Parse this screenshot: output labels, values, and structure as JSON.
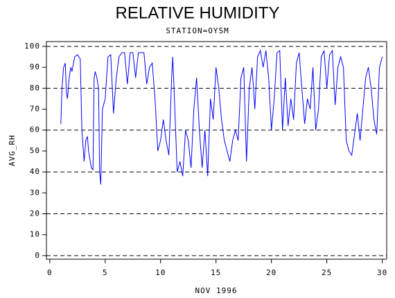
{
  "chart_data": {
    "type": "line",
    "title": "RELATIVE HUMIDITY",
    "subtitle": "STATION=OYSM",
    "x_label": "NOV 1996",
    "y_label": "AVG_RH",
    "color": "#0000ff",
    "grid": true,
    "xlim": [
      -0.3,
      30.4
    ],
    "ylim": [
      -1.7,
      102.3
    ],
    "xticks": [
      0,
      5,
      10,
      15,
      20,
      25,
      30
    ],
    "yticks": [
      0,
      10,
      20,
      30,
      40,
      50,
      60,
      70,
      80,
      90,
      100
    ],
    "x": [
      1,
      1.1,
      1.25,
      1.4,
      1.5,
      1.6,
      1.75,
      1.9,
      2,
      2.25,
      2.5,
      2.75,
      2.9,
      3.1,
      3.25,
      3.4,
      3.5,
      3.75,
      3.9,
      4,
      4.1,
      4.25,
      4.4,
      4.5,
      4.6,
      4.75,
      5,
      5.25,
      5.5,
      5.75,
      6,
      6.25,
      6.5,
      6.75,
      7,
      7.25,
      7.5,
      7.75,
      8,
      8.25,
      8.5,
      8.75,
      9,
      9.25,
      9.5,
      9.75,
      10,
      10.25,
      10.5,
      10.75,
      11,
      11.1,
      11.25,
      11.5,
      11.75,
      12,
      12.25,
      12.5,
      12.75,
      13,
      13.25,
      13.5,
      13.75,
      14,
      14.25,
      14.5,
      14.75,
      15,
      15.25,
      15.5,
      15.75,
      16,
      16.25,
      16.5,
      16.75,
      17,
      17.25,
      17.5,
      17.75,
      18,
      18.25,
      18.5,
      18.75,
      19,
      19.25,
      19.5,
      19.75,
      20,
      20.25,
      20.5,
      20.75,
      21,
      21.25,
      21.5,
      21.75,
      22,
      22.25,
      22.5,
      22.75,
      23,
      23.25,
      23.5,
      23.75,
      24,
      24.25,
      24.5,
      24.75,
      25,
      25.25,
      25.5,
      25.75,
      26,
      26.25,
      26.5,
      26.75,
      27,
      27.25,
      27.5,
      27.75,
      28,
      28.25,
      28.5,
      28.75,
      29,
      29.25,
      29.5,
      29.75,
      30
    ],
    "values": [
      63,
      80,
      90,
      92,
      78,
      75,
      85,
      90,
      88,
      95,
      96,
      94,
      60,
      45,
      55,
      57,
      50,
      42,
      41,
      85,
      88,
      85,
      80,
      40,
      34,
      70,
      75,
      95,
      96,
      68,
      85,
      95,
      97,
      97,
      82,
      97,
      97,
      85,
      97,
      97,
      97,
      82,
      90,
      92,
      75,
      50,
      55,
      65,
      55,
      48,
      85,
      95,
      75,
      40,
      45,
      38,
      60,
      55,
      42,
      70,
      85,
      60,
      42,
      60,
      38,
      75,
      65,
      90,
      80,
      65,
      55,
      50,
      45,
      55,
      60,
      55,
      85,
      90,
      45,
      80,
      90,
      70,
      95,
      98,
      90,
      98,
      85,
      60,
      75,
      97,
      98,
      60,
      85,
      62,
      75,
      65,
      92,
      97,
      80,
      63,
      75,
      70,
      90,
      60,
      70,
      95,
      98,
      80,
      96,
      98,
      72,
      90,
      95,
      90,
      55,
      50,
      48,
      58,
      68,
      55,
      70,
      85,
      90,
      80,
      65,
      58,
      90,
      95
    ]
  }
}
